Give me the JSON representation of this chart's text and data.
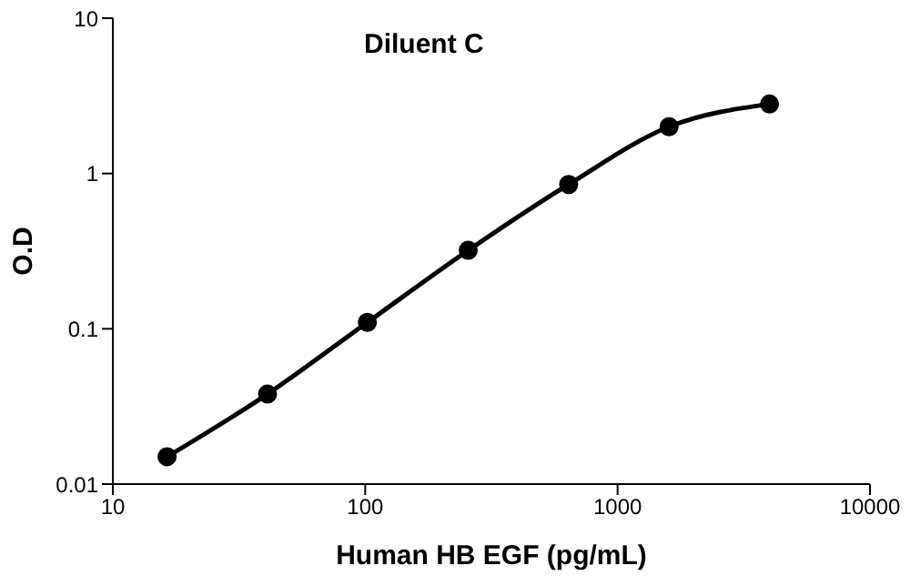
{
  "chart_data": {
    "type": "line",
    "title": "Diluent C",
    "xlabel": "Human HB EGF (pg/mL)",
    "ylabel": "O.D",
    "x": [
      16.4,
      41,
      102,
      256,
      640,
      1600,
      4000
    ],
    "series": [
      {
        "color": "#000000",
        "values": [
          0.015,
          0.038,
          0.11,
          0.32,
          0.85,
          2.0,
          2.8
        ]
      }
    ],
    "log": "xy",
    "xlim": [
      10,
      10000
    ],
    "xticks": [
      10,
      100,
      1000,
      10000
    ],
    "ylim": [
      0.01,
      10
    ],
    "yticks": [
      0.01,
      0.1,
      1,
      10
    ],
    "marker": "circle",
    "line_style": "solid"
  }
}
